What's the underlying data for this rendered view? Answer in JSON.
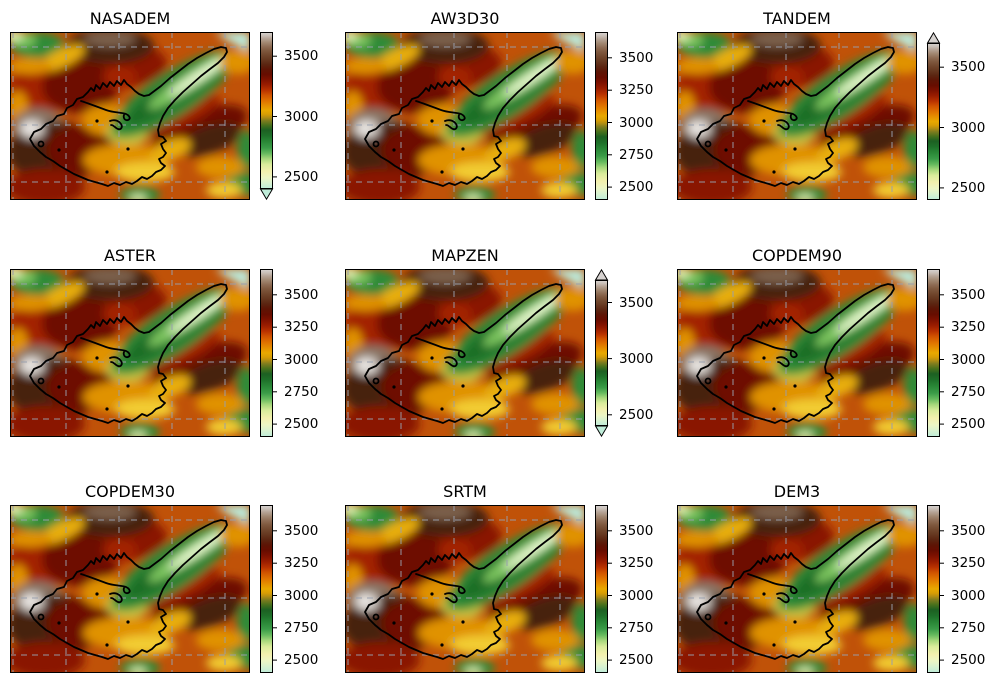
{
  "figure": {
    "background": "#ffffff",
    "description": "3x3 grid of digital elevation model maps with elevation colorbars"
  },
  "colorbar": {
    "vmin": 2400,
    "vmax": 3700,
    "arrow_height": 11,
    "gradient_stops": [
      [
        0.0,
        "#bfecd9"
      ],
      [
        0.035,
        "#d8f2d0"
      ],
      [
        0.07,
        "#edf6c5"
      ],
      [
        0.11,
        "#f3f0ae"
      ],
      [
        0.155,
        "#d9ec9b"
      ],
      [
        0.19,
        "#a8d87c"
      ],
      [
        0.225,
        "#66ba5e"
      ],
      [
        0.26,
        "#3b9c48"
      ],
      [
        0.3,
        "#2a8837"
      ],
      [
        0.34,
        "#1e7029"
      ],
      [
        0.375,
        "#1d6022"
      ],
      [
        0.405,
        "#47701c"
      ],
      [
        0.435,
        "#7f7c1e"
      ],
      [
        0.455,
        "#b18d13"
      ],
      [
        0.475,
        "#d79d04"
      ],
      [
        0.5,
        "#e8a800"
      ],
      [
        0.53,
        "#e68f00"
      ],
      [
        0.565,
        "#df7000"
      ],
      [
        0.6,
        "#d05200"
      ],
      [
        0.63,
        "#b93200"
      ],
      [
        0.665,
        "#991d00"
      ],
      [
        0.7,
        "#7d1100"
      ],
      [
        0.73,
        "#670d00"
      ],
      [
        0.765,
        "#5d1505"
      ],
      [
        0.795,
        "#5b2511"
      ],
      [
        0.825,
        "#65371f"
      ],
      [
        0.855,
        "#71472d"
      ],
      [
        0.885,
        "#7f593f"
      ],
      [
        0.91,
        "#8f6d55"
      ],
      [
        0.935,
        "#a18771"
      ],
      [
        0.96,
        "#b5a395"
      ],
      [
        0.98,
        "#c9bfb7"
      ],
      [
        1.0,
        "#d7d3d1"
      ]
    ]
  },
  "grid": {
    "color": "#989fae",
    "vertical_x": [
      3,
      56,
      109,
      162,
      215
    ],
    "horizontal_y": [
      15,
      93,
      150
    ]
  },
  "contour_color": "#000000",
  "map_features": {
    "base": "#c05208",
    "dark_red": "#8a1404",
    "maroon": "#6e1106",
    "red": "#a32400",
    "dark_brown": "#46220c",
    "brown_highlight": "#7c604b",
    "gray_brown": "#8a7464",
    "light_gray": "#cdc6c0",
    "white": "#f3f1ef",
    "orange": "#e09200",
    "amber": "#e8ae10",
    "yellow": "#f2cc30",
    "yellow_green": "#c6c445",
    "green": "#2e8b38",
    "dark_green": "#1d6e27",
    "light_green": "#7cc55e",
    "pale_valley": "#e8f7cf",
    "pale_cyan": "#bceee0",
    "pale_yellow_green": "#d9efae"
  },
  "panels": [
    {
      "title": "NASADEM",
      "colorbar": {
        "ticks": [
          3500,
          3000,
          2500
        ],
        "extend_min": true,
        "extend_max": false
      }
    },
    {
      "title": "AW3D30",
      "colorbar": {
        "ticks": [
          3500,
          3250,
          3000,
          2750,
          2500
        ],
        "extend_min": false,
        "extend_max": false
      }
    },
    {
      "title": "TANDEM",
      "colorbar": {
        "ticks": [
          3500,
          3000,
          2500
        ],
        "extend_min": false,
        "extend_max": true
      }
    },
    {
      "title": "ASTER",
      "colorbar": {
        "ticks": [
          3500,
          3250,
          3000,
          2750,
          2500
        ],
        "extend_min": false,
        "extend_max": false
      }
    },
    {
      "title": "MAPZEN",
      "colorbar": {
        "ticks": [
          3500,
          3000,
          2500
        ],
        "extend_min": true,
        "extend_max": true
      }
    },
    {
      "title": "COPDEM90",
      "colorbar": {
        "ticks": [
          3500,
          3250,
          3000,
          2750,
          2500
        ],
        "extend_min": false,
        "extend_max": false
      }
    },
    {
      "title": "COPDEM30",
      "colorbar": {
        "ticks": [
          3500,
          3250,
          3000,
          2750,
          2500
        ],
        "extend_min": false,
        "extend_max": false
      }
    },
    {
      "title": "SRTM",
      "colorbar": {
        "ticks": [
          3500,
          3250,
          3000,
          2750,
          2500
        ],
        "extend_min": false,
        "extend_max": false
      }
    },
    {
      "title": "DEM3",
      "colorbar": {
        "ticks": [
          3500,
          3250,
          3000,
          2750,
          2500
        ],
        "extend_min": false,
        "extend_max": false
      }
    }
  ],
  "chart_data": {
    "type": "heatmap",
    "subtype": "elevation-map-comparison",
    "grid_layout": "3x3",
    "panels": [
      {
        "title": "NASADEM",
        "colorbar_ticks": [
          3500,
          3000,
          2500
        ],
        "colorbar_extend": "min"
      },
      {
        "title": "AW3D30",
        "colorbar_ticks": [
          3500,
          3250,
          3000,
          2750,
          2500
        ],
        "colorbar_extend": "neither"
      },
      {
        "title": "TANDEM",
        "colorbar_ticks": [
          3500,
          3000,
          2500
        ],
        "colorbar_extend": "max"
      },
      {
        "title": "ASTER",
        "colorbar_ticks": [
          3500,
          3250,
          3000,
          2750,
          2500
        ],
        "colorbar_extend": "neither"
      },
      {
        "title": "MAPZEN",
        "colorbar_ticks": [
          3500,
          3000,
          2500
        ],
        "colorbar_extend": "both"
      },
      {
        "title": "COPDEM90",
        "colorbar_ticks": [
          3500,
          3250,
          3000,
          2750,
          2500
        ],
        "colorbar_extend": "neither"
      },
      {
        "title": "COPDEM30",
        "colorbar_ticks": [
          3500,
          3250,
          3000,
          2750,
          2500
        ],
        "colorbar_extend": "neither"
      },
      {
        "title": "SRTM",
        "colorbar_ticks": [
          3500,
          3250,
          3000,
          2750,
          2500
        ],
        "colorbar_extend": "neither"
      },
      {
        "title": "DEM3",
        "colorbar_ticks": [
          3500,
          3250,
          3000,
          2750,
          2500
        ],
        "colorbar_extend": "neither"
      }
    ],
    "value_range_estimate": [
      2400,
      3700
    ],
    "notable_features": [
      "white/gray high peak near left-center edge (~3700 m)",
      "dark brown high terrain top-center and lower-left quadrant",
      "pale green/cyan diagonal valley from top-right corner to map center (~2400-2600 m)",
      "black watershed/glacier outline enclosing center-left area with long narrow northeast arm",
      "green patch top-left corner and bottom-center",
      "dark red ridge from center-right toward right edge",
      "dashed gray graticule lines"
    ]
  }
}
